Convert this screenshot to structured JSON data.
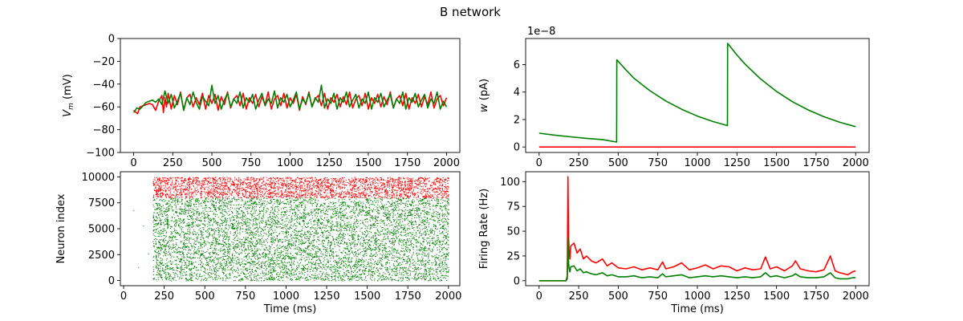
{
  "figure": {
    "title": "B network"
  },
  "chart_data": [
    {
      "id": "vm",
      "type": "line",
      "title": "",
      "xlabel": "",
      "ylabel": "V_m (mV)",
      "ylabel_parts": [
        "V",
        "m",
        " (mV)"
      ],
      "xlim": [
        -85,
        2085
      ],
      "ylim": [
        -100,
        0
      ],
      "xticks": [
        0,
        250,
        500,
        750,
        1000,
        1250,
        1500,
        1750,
        2000
      ],
      "yticks": [
        -100,
        -80,
        -60,
        -40,
        -20,
        0
      ],
      "series": [
        {
          "color": "#ff0000",
          "x": [
            0,
            25,
            40,
            60,
            80,
            100,
            120,
            140,
            160,
            180,
            190,
            200,
            210,
            220,
            240,
            260,
            280,
            300,
            320,
            340,
            360,
            380,
            400,
            420,
            440,
            460,
            480,
            500,
            520,
            540,
            560,
            580,
            600,
            620,
            640,
            660,
            680,
            700,
            720,
            740,
            760,
            780,
            800,
            820,
            840,
            860,
            880,
            900,
            920,
            940,
            960,
            980,
            1000,
            1020,
            1040,
            1060,
            1080,
            1100,
            1120,
            1140,
            1160,
            1180,
            1200,
            1220,
            1240,
            1260,
            1280,
            1300,
            1320,
            1340,
            1360,
            1380,
            1400,
            1420,
            1440,
            1460,
            1480,
            1500,
            1520,
            1540,
            1560,
            1580,
            1600,
            1620,
            1640,
            1660,
            1680,
            1700,
            1720,
            1740,
            1760,
            1780,
            1800,
            1820,
            1840,
            1860,
            1880,
            1900,
            1920,
            1940,
            1960,
            1980,
            2000
          ],
          "y": [
            -63,
            -66,
            -60,
            -59,
            -58,
            -57,
            -58,
            -63,
            -55,
            -50,
            -65,
            -52,
            -60,
            -48,
            -62,
            -50,
            -58,
            -47,
            -63,
            -52,
            -49,
            -60,
            -52,
            -58,
            -48,
            -62,
            -50,
            -57,
            -49,
            -63,
            -51,
            -58,
            -47,
            -61,
            -53,
            -50,
            -59,
            -48,
            -62,
            -52,
            -57,
            -49,
            -60,
            -51,
            -58,
            -47,
            -62,
            -53,
            -50,
            -59,
            -48,
            -61,
            -52,
            -57,
            -49,
            -63,
            -51,
            -58,
            -47,
            -60,
            -53,
            -50,
            -59,
            -48,
            -62,
            -52,
            -56,
            -49,
            -60,
            -51,
            -58,
            -47,
            -61,
            -53,
            -50,
            -59,
            -48,
            -62,
            -52,
            -57,
            -49,
            -60,
            -51,
            -58,
            -47,
            -61,
            -53,
            -50,
            -59,
            -48,
            -62,
            -52,
            -57,
            -49,
            -60,
            -51,
            -58,
            -47,
            -61,
            -53,
            -50,
            -59,
            -52
          ]
        },
        {
          "color": "#008000",
          "x": [
            0,
            20,
            40,
            60,
            80,
            100,
            120,
            140,
            160,
            180,
            200,
            220,
            240,
            260,
            280,
            300,
            320,
            340,
            360,
            380,
            400,
            420,
            440,
            460,
            480,
            500,
            520,
            540,
            560,
            580,
            600,
            620,
            640,
            660,
            680,
            700,
            720,
            740,
            760,
            780,
            800,
            820,
            840,
            860,
            880,
            900,
            920,
            940,
            960,
            980,
            1000,
            1020,
            1040,
            1060,
            1080,
            1100,
            1120,
            1140,
            1160,
            1180,
            1200,
            1220,
            1240,
            1260,
            1280,
            1300,
            1320,
            1340,
            1360,
            1380,
            1400,
            1420,
            1440,
            1460,
            1480,
            1500,
            1520,
            1540,
            1560,
            1580,
            1600,
            1620,
            1640,
            1660,
            1680,
            1700,
            1720,
            1740,
            1760,
            1780,
            1800,
            1820,
            1840,
            1860,
            1880,
            1900,
            1920,
            1940,
            1960,
            1980,
            2000
          ],
          "y": [
            -65,
            -61,
            -62,
            -59,
            -56,
            -55,
            -54,
            -56,
            -53,
            -58,
            -46,
            -57,
            -49,
            -61,
            -55,
            -48,
            -63,
            -52,
            -58,
            -47,
            -56,
            -62,
            -51,
            -55,
            -59,
            -41,
            -57,
            -50,
            -62,
            -54,
            -48,
            -60,
            -53,
            -57,
            -47,
            -61,
            -52,
            -56,
            -49,
            -62,
            -54,
            -48,
            -59,
            -53,
            -57,
            -46,
            -61,
            -52,
            -56,
            -49,
            -60,
            -54,
            -47,
            -62,
            -53,
            -57,
            -48,
            -60,
            -52,
            -56,
            -41,
            -61,
            -53,
            -57,
            -48,
            -62,
            -52,
            -56,
            -47,
            -60,
            -54,
            -49,
            -61,
            -53,
            -57,
            -47,
            -62,
            -52,
            -56,
            -48,
            -60,
            -54,
            -49,
            -61,
            -53,
            -57,
            -47,
            -62,
            -52,
            -56,
            -48,
            -60,
            -54,
            -49,
            -61,
            -53,
            -57,
            -47,
            -62,
            -55,
            -60
          ]
        }
      ]
    },
    {
      "id": "w",
      "type": "line",
      "title": "",
      "xlabel": "",
      "ylabel": "w (pA)",
      "ylabel_parts": [
        "w",
        "",
        " (pA)"
      ],
      "offset_text": "1e−8",
      "xlim": [
        -85,
        2085
      ],
      "ylim": [
        -0.4,
        7.9
      ],
      "xticks": [
        0,
        250,
        500,
        750,
        1000,
        1250,
        1500,
        1750,
        2000
      ],
      "yticks": [
        0,
        2,
        4,
        6
      ],
      "series": [
        {
          "color": "#008000",
          "x": [
            0,
            100,
            200,
            300,
            400,
            490,
            491,
            550,
            600,
            700,
            800,
            900,
            1000,
            1100,
            1190,
            1191,
            1250,
            1300,
            1400,
            1500,
            1600,
            1700,
            1800,
            1900,
            2000
          ],
          "y": [
            1.0,
            0.86,
            0.74,
            0.63,
            0.54,
            0.36,
            6.35,
            5.6,
            5.0,
            4.1,
            3.35,
            2.75,
            2.25,
            1.85,
            1.56,
            7.55,
            6.7,
            6.05,
            4.95,
            4.05,
            3.3,
            2.7,
            2.2,
            1.8,
            1.48
          ]
        },
        {
          "color": "#ff0000",
          "x": [
            0,
            2000
          ],
          "y": [
            0,
            0
          ]
        }
      ]
    },
    {
      "id": "raster",
      "type": "scatter",
      "title": "",
      "xlabel": "Time (ms)",
      "ylabel": "Neuron index",
      "ylabel_parts": [
        "Neuron index",
        "",
        ""
      ],
      "xlim": [
        -20,
        2070
      ],
      "ylim": [
        -500,
        10500
      ],
      "xticks": [
        0,
        250,
        500,
        750,
        1000,
        1250,
        1500,
        1750,
        2000
      ],
      "yticks": [
        0,
        2500,
        5000,
        7500,
        10000
      ],
      "series": [
        {
          "color": "#008000",
          "x_range": [
            180,
            2000
          ],
          "y_range": [
            0,
            8000
          ]
        },
        {
          "color": "#ff0000",
          "x_range": [
            180,
            2000
          ],
          "y_range": [
            8000,
            10000
          ]
        }
      ]
    },
    {
      "id": "rate",
      "type": "line",
      "title": "",
      "xlabel": "Time (ms)",
      "ylabel": "Firing Rate (Hz)",
      "ylabel_parts": [
        "Firing Rate (Hz)",
        "",
        ""
      ],
      "xlim": [
        -85,
        2085
      ],
      "ylim": [
        -5,
        110
      ],
      "xticks": [
        0,
        250,
        500,
        750,
        1000,
        1250,
        1500,
        1750,
        2000
      ],
      "yticks": [
        0,
        25,
        50,
        75,
        100
      ],
      "series": [
        {
          "color": "#ff0000",
          "x": [
            0,
            100,
            170,
            178,
            182,
            186,
            190,
            195,
            200,
            220,
            240,
            260,
            280,
            300,
            330,
            360,
            400,
            430,
            460,
            500,
            550,
            600,
            650,
            700,
            750,
            780,
            800,
            850,
            900,
            950,
            1000,
            1050,
            1100,
            1150,
            1200,
            1250,
            1300,
            1350,
            1400,
            1430,
            1460,
            1500,
            1550,
            1600,
            1620,
            1650,
            1700,
            1750,
            1800,
            1840,
            1870,
            1900,
            1950,
            1980,
            2000
          ],
          "y": [
            0,
            0,
            0,
            5,
            105,
            45,
            30,
            22,
            35,
            38,
            28,
            32,
            22,
            25,
            20,
            18,
            22,
            15,
            18,
            13,
            12,
            14,
            11,
            13,
            11,
            19,
            12,
            14,
            18,
            11,
            13,
            16,
            12,
            15,
            14,
            10,
            13,
            11,
            12,
            24,
            12,
            14,
            10,
            15,
            20,
            12,
            10,
            9,
            11,
            25,
            10,
            8,
            6,
            9,
            10
          ]
        },
        {
          "color": "#008000",
          "x": [
            0,
            100,
            170,
            178,
            182,
            186,
            190,
            195,
            200,
            220,
            240,
            260,
            280,
            300,
            330,
            360,
            400,
            430,
            460,
            500,
            550,
            600,
            650,
            700,
            750,
            780,
            800,
            850,
            900,
            950,
            1000,
            1050,
            1100,
            1150,
            1200,
            1250,
            1300,
            1350,
            1400,
            1430,
            1460,
            1500,
            1550,
            1600,
            1620,
            1650,
            1700,
            1750,
            1800,
            1840,
            1870,
            1900,
            1950,
            1980,
            2000
          ],
          "y": [
            0,
            0,
            0,
            2,
            44,
            18,
            12,
            9,
            14,
            15,
            10,
            12,
            8,
            9,
            7,
            6,
            8,
            5,
            6,
            4,
            4,
            5,
            3,
            4,
            3,
            7,
            4,
            5,
            6,
            3,
            4,
            5,
            4,
            5,
            4,
            3,
            4,
            3,
            4,
            8,
            4,
            5,
            3,
            5,
            7,
            4,
            3,
            3,
            4,
            8,
            3,
            2,
            2,
            3,
            3
          ]
        }
      ]
    }
  ]
}
